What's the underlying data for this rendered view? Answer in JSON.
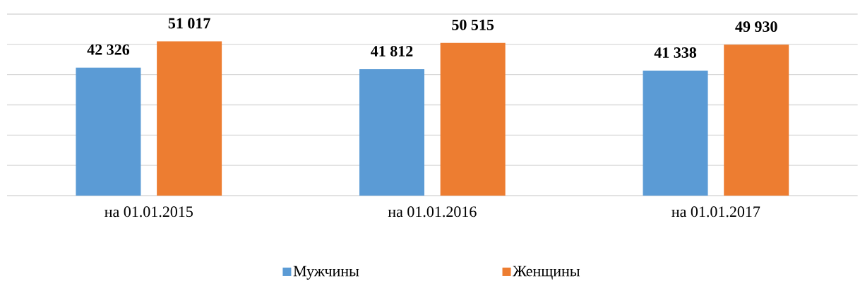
{
  "chart_data": {
    "type": "bar",
    "categories": [
      "на 01.01.2015",
      "на 01.01.2016",
      "на 01.01.2017"
    ],
    "series": [
      {
        "name": "Мужчины",
        "color": "#5b9bd5",
        "values": [
          42326,
          41812,
          41338
        ],
        "value_labels": [
          "42 326",
          "41 812",
          "41 338"
        ]
      },
      {
        "name": "Женщины",
        "color": "#ed7d31",
        "values": [
          51017,
          50515,
          49930
        ],
        "value_labels": [
          "51 017",
          "50 515",
          "49 930"
        ]
      }
    ],
    "ylim": [
      0,
      60000
    ],
    "yticks": [
      {
        "value": 0,
        "label": null
      },
      {
        "value": 10000,
        "label": null
      },
      {
        "value": 20000,
        "label": null
      },
      {
        "value": 30000,
        "label": null
      },
      {
        "value": 40000,
        "label": null
      },
      {
        "value": 50000,
        "label": null
      },
      {
        "value": 60000,
        "label": null
      }
    ],
    "grid": "y",
    "legend": "bottom",
    "tick_labels": "x"
  }
}
